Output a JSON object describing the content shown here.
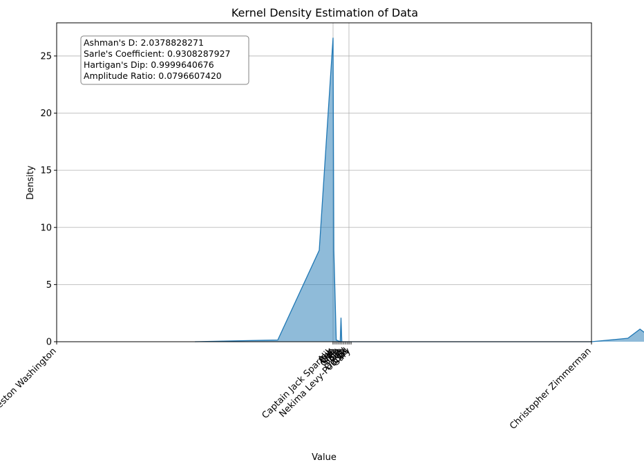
{
  "chart_data": {
    "type": "area",
    "title": "Kernel Density Estimation of Data",
    "xlabel": "Value",
    "ylabel": "Density",
    "ylim": [
      0,
      27.9
    ],
    "yticks": [
      0,
      5,
      10,
      15,
      20,
      25
    ],
    "grid": true,
    "colors": {
      "line": "#1f77b4",
      "fill": "#1f77b4",
      "grid": "#b0b0b0"
    },
    "x_categories": [
      "Theron Preston Washington",
      "Captain Jack Sparrow",
      "Nekima Levy-Pounds",
      "Christopher Zimmerman"
    ],
    "overlapping_tick_labels": [
      "Alik",
      "Ben",
      "Dan",
      "Greg",
      "Sam",
      "Ole",
      "Rob",
      "Dr. Ed",
      "Carl",
      "Gary"
    ],
    "series": [
      {
        "x": [
          -0.5,
          -0.2,
          -0.05,
          0,
          0.05,
          0.2,
          0.45,
          0.5,
          0.55,
          0.8,
          2.0,
          2.15,
          2.2,
          2.25,
          2.4,
          2.7
        ],
        "y": [
          0,
          0.15,
          8,
          26.6,
          8,
          0.15,
          0,
          2.1,
          0,
          0,
          0,
          0.3,
          1.1,
          0.3,
          0,
          0
        ]
      }
    ],
    "annotation": {
      "lines": [
        "Ashman's D: 2.0378828271",
        "Sarle's Coefficient: 0.9308287927",
        "Hartigan's Dip: 0.9999640676",
        "Amplitude Ratio: 0.0796607420"
      ]
    }
  }
}
